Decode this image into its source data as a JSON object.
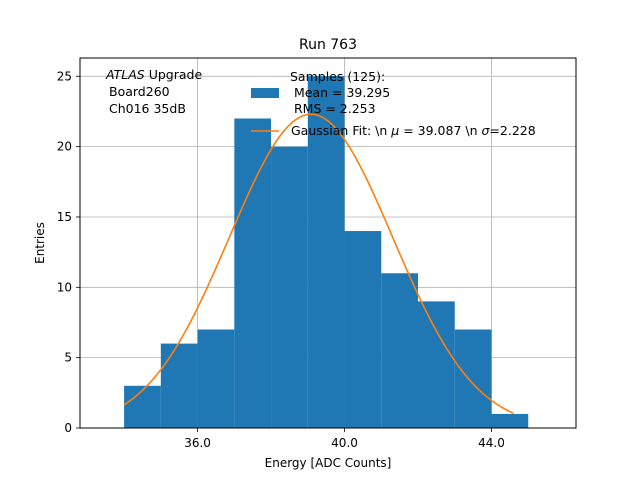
{
  "chart_data": {
    "type": "bar",
    "title": "Run 763",
    "xlabel": "Energy [ADC Counts]",
    "ylabel": "Entries",
    "xlim": [
      32.8,
      46.3
    ],
    "ylim": [
      0,
      26.3
    ],
    "xticks": [
      36,
      40,
      44
    ],
    "xtick_labels": [
      "36.0",
      "40.0",
      "44.0"
    ],
    "yticks": [
      0,
      5,
      10,
      15,
      20,
      25
    ],
    "ytick_labels": [
      "0",
      "5",
      "10",
      "15",
      "20",
      "25"
    ],
    "grid": true,
    "legend_placement": "top-center",
    "colors": {
      "histogram": "#1f77b4",
      "fit": "#ff7f0e",
      "grid": "#b0b0b0"
    },
    "histogram": {
      "bin_edges": [
        34,
        35,
        36,
        37,
        38,
        39,
        40,
        41,
        42,
        43,
        44,
        45
      ],
      "counts": [
        3,
        6,
        7,
        22,
        20,
        25,
        14,
        11,
        9,
        7,
        1
      ]
    },
    "fit": {
      "x_range": [
        34,
        44.6
      ],
      "amplitude": 22.3,
      "mu": 39.087,
      "sigma": 2.228
    },
    "annotation_lines": [
      "ATLAS",
      " Upgrade",
      "Board260",
      "Ch016 35dB"
    ],
    "legend": {
      "histogram_lines": [
        "Samples (125):",
        " Mean = 39.295",
        " RMS = 2.253"
      ],
      "fit_parts": [
        "Gaussian Fit: \\n ",
        "μ",
        " = 39.087 \\n ",
        "σ",
        "=2.228"
      ]
    }
  }
}
